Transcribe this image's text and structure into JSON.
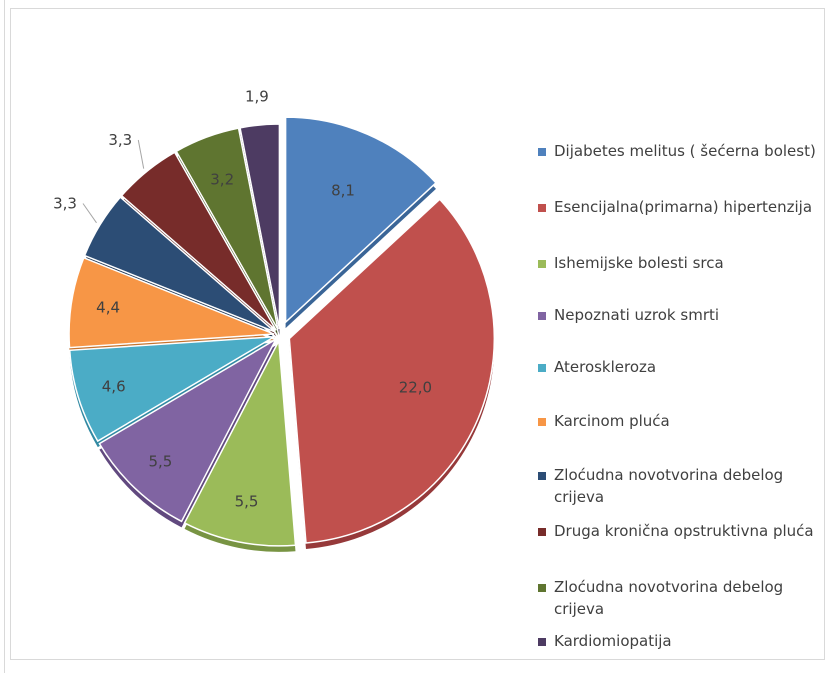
{
  "chart_data": {
    "type": "pie",
    "values": [
      8.1,
      22.0,
      5.5,
      5.5,
      4.6,
      4.4,
      3.3,
      3.3,
      3.2,
      1.9
    ],
    "data_labels": [
      "8,1",
      "22,0",
      "5,5",
      "5,5",
      "4,6",
      "4,4",
      "3,3",
      "3,3",
      "3,2",
      "1,9"
    ],
    "legend": [
      "Dijabetes melitus ( šećerna bolest)",
      "Esencijalna(primarna) hipertenzija",
      "Ishemijske bolesti srca",
      "Nepoznati uzrok smrti",
      "Ateroskleroza",
      "Karcinom pluća",
      "Zloćudna novotvorina debelog crijeva",
      "Druga kronična opstruktivna pluća",
      "Zloćudna novotvorina debelog crijeva",
      "Kardiomiopatija"
    ],
    "colors": [
      "#4f81bd",
      "#c0504d",
      "#9bbb59",
      "#8064a2",
      "#4bacc6",
      "#f79646",
      "#2c4d75",
      "#772c2a",
      "#5f7530",
      "#4d3b62"
    ],
    "dark_colors": [
      "#3a6597",
      "#96393a",
      "#789443",
      "#61497f",
      "#328aa3",
      "#c6742f",
      "#1f3755",
      "#551d1c",
      "#43541f",
      "#352846"
    ],
    "legend_position": "right",
    "exploded": true
  }
}
